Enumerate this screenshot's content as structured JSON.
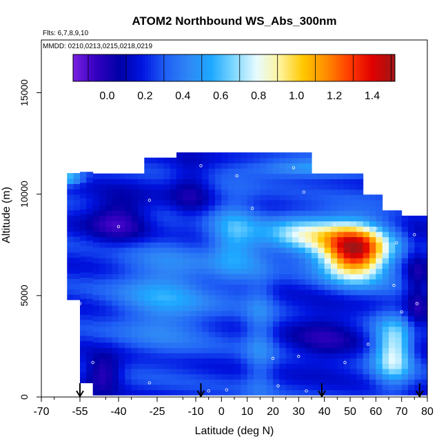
{
  "chart_data": {
    "type": "heatmap",
    "title": "ATOM2 Northbound WS_Abs_300nm",
    "flights_note": "Flts: 6,7,8,9,10",
    "dates_note": "MMDD: 0210,0213,0215,0218,0219",
    "xlabel": "Latitude (deg N)",
    "ylabel": "Altitude (m)",
    "xlim": [
      -70,
      80
    ],
    "ylim": [
      0,
      17600
    ],
    "x_tick_labels": [
      "-70",
      "-55",
      "-40",
      "-25",
      "-10",
      "0",
      "10",
      "20",
      "30",
      "40",
      "50",
      "60",
      "70",
      "80"
    ],
    "y_tick_labels": [
      "0",
      "5000",
      "10000",
      "15000"
    ],
    "colorbar": {
      "range": [
        -0.18,
        1.52
      ],
      "tick_labels": [
        "0.0",
        "0.2",
        "0.4",
        "0.6",
        "0.8",
        "1.0",
        "1.2",
        "1.4"
      ],
      "colors": [
        "#7b1fe0",
        "#3300c0",
        "#0000a6",
        "#0014e0",
        "#1f5ef5",
        "#2f86f5",
        "#1ea8ff",
        "#7ed8ff",
        "#e8fbff",
        "#fff39a",
        "#ffc800",
        "#ff8c00",
        "#ff3d00",
        "#e00000",
        "#a01616"
      ]
    },
    "flight_markers_lat": [
      -55,
      -8,
      39,
      77
    ],
    "grid": false,
    "legend": "colorbar-top"
  }
}
